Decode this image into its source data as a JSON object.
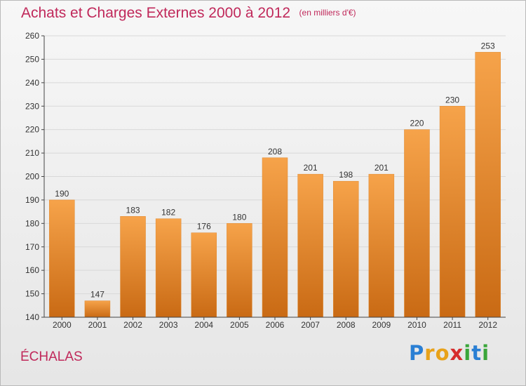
{
  "chart_data": {
    "type": "bar",
    "title": "Achats et Charges Externes 2000 à 2012",
    "subtitle": "(en milliers d'€)",
    "categories": [
      "2000",
      "2001",
      "2002",
      "2003",
      "2004",
      "2005",
      "2006",
      "2007",
      "2008",
      "2009",
      "2010",
      "2011",
      "2012"
    ],
    "values": [
      190,
      147,
      183,
      182,
      176,
      180,
      208,
      201,
      198,
      201,
      220,
      230,
      253
    ],
    "ylim": [
      140,
      260
    ],
    "yticks": [
      140,
      150,
      160,
      170,
      180,
      190,
      200,
      210,
      220,
      230,
      240,
      250,
      260
    ],
    "xlabel": "",
    "ylabel": "",
    "grid": true,
    "bar_color_top": "#f6a34a",
    "bar_color_bottom": "#c96a14"
  },
  "place_name": "ÉCHALAS",
  "logo": {
    "letters": [
      "P",
      "r",
      "o",
      "x",
      "i",
      "t",
      "i"
    ],
    "colors": [
      "#2a7fd4",
      "#e8a21a",
      "#e8a21a",
      "#d62d2d",
      "#3aa63a",
      "#2a7fd4",
      "#3aa63a"
    ]
  },
  "colors": {
    "title": "#c0285a",
    "grid": "#d8d8d8",
    "axis": "#444444",
    "tick_text": "#333333"
  }
}
